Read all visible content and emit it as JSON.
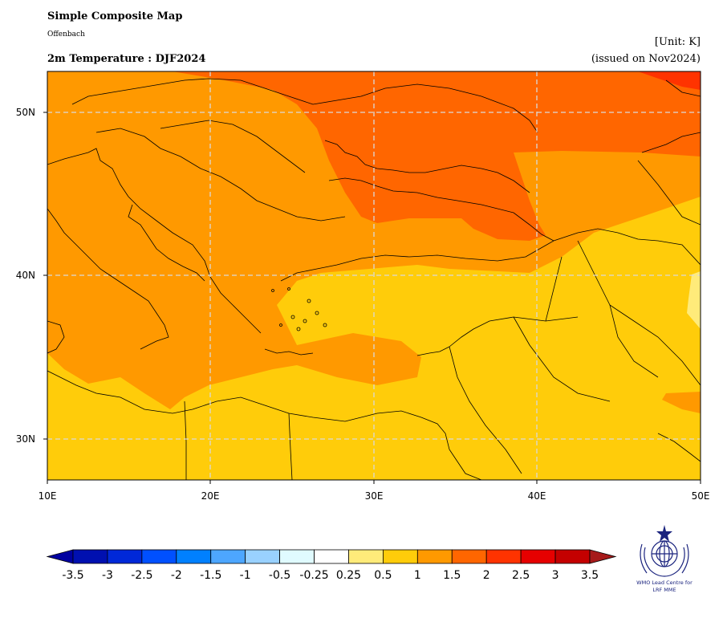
{
  "header": {
    "title": "Simple Composite Map",
    "subtitle": "Offenbach",
    "product": "2m Temperature : DJF2024",
    "unit": "[Unit: K]",
    "issued": "(issued on Nov2024)"
  },
  "map": {
    "lon_range": [
      10,
      50
    ],
    "lat_range": [
      27.5,
      52.5
    ],
    "lon_ticks": [
      "10E",
      "20E",
      "30E",
      "40E",
      "50E"
    ],
    "lat_ticks": [
      "30N",
      "40N",
      "50N"
    ],
    "gridlines": "dashed",
    "colors": {
      "c_0_25_0_5": "#ffeb7a",
      "c_0_5_1": "#ffcc0a",
      "c_1_1_5": "#ff9900",
      "c_1_5_2": "#ff6600",
      "c_2_2_5": "#ff3300"
    }
  },
  "colorbar": {
    "labels": [
      "-3.5",
      "-3",
      "-2.5",
      "-2",
      "-1.5",
      "-1",
      "-0.5",
      "-0.25",
      "0.25",
      "0.5",
      "1",
      "1.5",
      "2",
      "2.5",
      "3",
      "3.5"
    ],
    "colors": [
      "#0010b0",
      "#0028d8",
      "#0050ff",
      "#0080ff",
      "#4da6ff",
      "#99d1ff",
      "#e0fbff",
      "#ffffff",
      "#ffeb7a",
      "#ffcc0a",
      "#ff9900",
      "#ff6600",
      "#ff3300",
      "#e60000",
      "#c40000"
    ],
    "under_color": "#0000a0",
    "over_color": "#a61a1a"
  },
  "logo": {
    "line1": "WMO Lead Centre for",
    "line2": "LRF MME"
  }
}
